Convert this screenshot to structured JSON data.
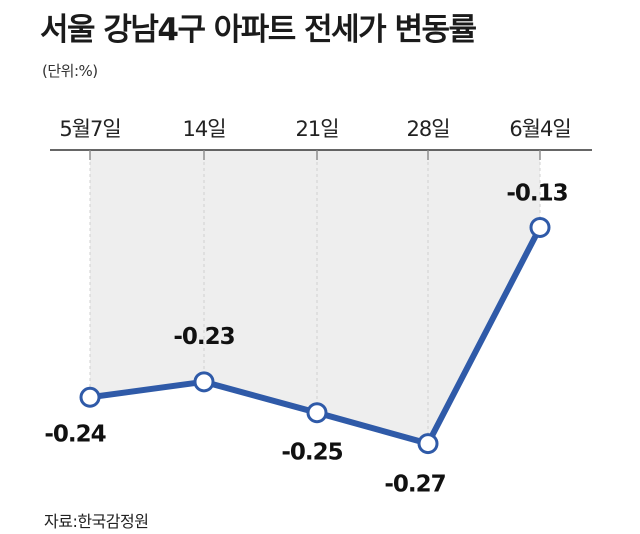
{
  "title": "서울 강남4구 아파트 전세가 변동률",
  "unit_label": "(단위:%)",
  "source": "자료:한국감정원",
  "chart_data": {
    "type": "line",
    "categories": [
      "5월7일",
      "14일",
      "21일",
      "28일",
      "6월4일"
    ],
    "values": [
      -0.24,
      -0.23,
      -0.25,
      -0.27,
      -0.13
    ],
    "data_labels": [
      "-0.24",
      "-0.23",
      "-0.25",
      "-0.27",
      "-0.13"
    ],
    "ylim": [
      -0.28,
      -0.12
    ],
    "grid": false,
    "colors": {
      "line": "#2f5aa8",
      "marker_fill": "#ffffff",
      "area": "#eeeeee",
      "axis": "#333333",
      "tick": "#888888"
    }
  }
}
